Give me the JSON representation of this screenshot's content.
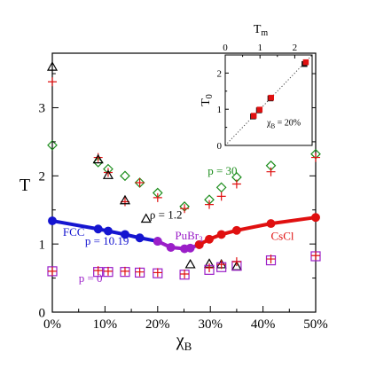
{
  "chart_data": [
    {
      "type": "scatter",
      "title": "",
      "xlabel": "χ",
      "xlabel_sub": "B",
      "ylabel": "T",
      "xlim": [
        0,
        50
      ],
      "ylim": [
        0,
        3.8
      ],
      "x_ticks": [
        "0%",
        "10%",
        "20%",
        "30%",
        "40%",
        "50%"
      ],
      "x_tick_values": [
        0,
        10,
        20,
        30,
        40,
        50
      ],
      "y_ticks": [
        "0",
        "1",
        "2",
        "3"
      ],
      "y_tick_values": [
        0,
        1,
        2,
        3
      ],
      "grid": false,
      "annotations": [
        {
          "text": "p = 30",
          "color": "#1a8c1a",
          "x": 29.5,
          "y": 2.02
        },
        {
          "text": "ρ = 1.2",
          "color": "#000000",
          "x": 18.5,
          "y": 1.37
        },
        {
          "text": "PuBr",
          "sub": "3",
          "color": "#9b1fc8",
          "x": 23.3,
          "y": 1.07
        },
        {
          "text": "FCC",
          "color": "#1515d0",
          "x": 2.0,
          "y": 1.12
        },
        {
          "text": "p = 10.19",
          "color": "#1515d0",
          "x": 6.2,
          "y": 0.99
        },
        {
          "text": "CsCl",
          "color": "#e01010",
          "x": 41.5,
          "y": 1.06
        },
        {
          "text": "p = 0",
          "color": "#9b1fc8",
          "x": 5.0,
          "y": 0.44
        }
      ],
      "series": [
        {
          "marker": "line-circle",
          "color": "#1515d0",
          "x": [
            0,
            8.7,
            10.6,
            13.8,
            16.6,
            20
          ],
          "y": [
            1.34,
            1.22,
            1.19,
            1.14,
            1.09,
            1.04
          ],
          "hollow_last": true
        },
        {
          "marker": "line-circle",
          "color": "#9b1fc8",
          "x": [
            20,
            22.5,
            25.1,
            26.2,
            27.9
          ],
          "y": [
            1.04,
            0.95,
            0.93,
            0.94,
            0.99
          ]
        },
        {
          "marker": "line-circle",
          "color": "#e01010",
          "x": [
            27.9,
            29.8,
            32.1,
            35,
            41.5,
            50
          ],
          "y": [
            0.99,
            1.07,
            1.14,
            1.2,
            1.3,
            1.39
          ]
        },
        {
          "marker": "diamond-open",
          "color": "#1a8c1a",
          "x": [
            0,
            8.7,
            10.6,
            13.8,
            16.6,
            20,
            25.1,
            29.8,
            32.1,
            35,
            41.5,
            50
          ],
          "y": [
            2.45,
            2.2,
            2.1,
            2.0,
            1.9,
            1.75,
            1.55,
            1.65,
            1.83,
            1.98,
            2.15,
            2.32
          ]
        },
        {
          "marker": "plus",
          "color": "#e01010",
          "x": [
            0,
            8.7,
            10.6,
            13.8,
            16.6,
            20,
            25.1,
            29.8,
            32.1,
            35,
            41.5,
            50
          ],
          "y": [
            3.38,
            2.27,
            2.05,
            1.62,
            1.9,
            1.68,
            1.52,
            1.58,
            1.7,
            1.88,
            2.06,
            2.27
          ]
        },
        {
          "marker": "triangle-open",
          "color": "#000000",
          "x": [
            0,
            8.7,
            10.6,
            13.8,
            17.8,
            26.2,
            29.8,
            32.1,
            35
          ],
          "y": [
            3.6,
            2.24,
            2.01,
            1.64,
            1.37,
            0.7,
            0.71,
            0.7,
            0.67
          ]
        },
        {
          "marker": "square-open",
          "color": "#9b1fc8",
          "x": [
            0,
            8.7,
            10.6,
            13.8,
            16.6,
            20,
            25.1,
            29.8,
            32.1,
            35,
            41.5,
            50
          ],
          "y": [
            0.6,
            0.59,
            0.59,
            0.59,
            0.58,
            0.57,
            0.55,
            0.62,
            0.66,
            0.68,
            0.76,
            0.82
          ]
        },
        {
          "marker": "plus",
          "color": "#e01010",
          "x": [
            0,
            8.7,
            10.6,
            13.8,
            16.6,
            20,
            25.1,
            29.8,
            32.1,
            35,
            41.5,
            50
          ],
          "y": [
            0.6,
            0.61,
            0.6,
            0.6,
            0.59,
            0.58,
            0.56,
            0.65,
            0.7,
            0.74,
            0.78,
            0.83
          ]
        }
      ]
    },
    {
      "type": "scatter",
      "title": "",
      "xlabel": "T",
      "xlabel_sub": "m",
      "ylabel": "T",
      "ylabel_sub": "0",
      "xlim": [
        0,
        2.5
      ],
      "ylim": [
        0,
        2.5
      ],
      "x_ticks": [
        "0",
        "1",
        "2"
      ],
      "x_tick_values": [
        0,
        1,
        2
      ],
      "y_ticks": [
        "0",
        "1",
        "2"
      ],
      "y_tick_values": [
        0,
        1,
        2
      ],
      "annotations": [
        {
          "text": "χ",
          "sub": "B",
          "suffix": " = 20%",
          "color": "#000000",
          "x": 1.2,
          "y": 0.55
        }
      ],
      "series": [
        {
          "marker": "square-filled",
          "color": "#111111",
          "x": [
            0.8,
            0.97,
            1.3,
            2.28
          ],
          "y": [
            0.8,
            0.97,
            1.3,
            2.25
          ]
        },
        {
          "marker": "square-filled",
          "color": "#e01010",
          "x": [
            0.82,
            0.99,
            1.32,
            2.32
          ],
          "y": [
            0.82,
            0.99,
            1.32,
            2.3
          ]
        }
      ],
      "reference_line": {
        "from": [
          0,
          0
        ],
        "to": [
          2.5,
          2.5
        ],
        "style": "dotted"
      }
    }
  ]
}
